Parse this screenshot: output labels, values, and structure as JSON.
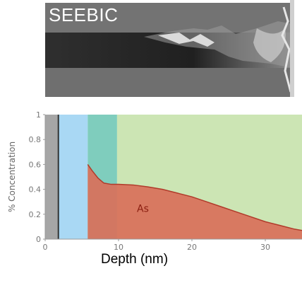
{
  "sem": {
    "label": "SEEBIC"
  },
  "chart_data": {
    "type": "area",
    "xlabel": "Depth (nm)",
    "ylabel": "% Concentration",
    "xlim": [
      0,
      35
    ],
    "ylim": [
      0,
      1
    ],
    "x_ticks": [
      0,
      10,
      20,
      30
    ],
    "y_ticks": [
      0,
      0.2,
      0.4,
      0.6,
      0.8,
      1
    ],
    "y_tick_labels": [
      "0",
      "0.2",
      "0.4",
      "0.6",
      "0.8",
      "1"
    ],
    "grid": false,
    "regions": [
      {
        "x_start": 0,
        "x_end": 1.8,
        "color": "#a6a6a6"
      },
      {
        "x_start": 1.8,
        "x_end": 5.8,
        "color": "#a9d8f4"
      },
      {
        "x_start": 5.8,
        "x_end": 9.8,
        "color": "#7fcdbd"
      },
      {
        "x_start": 9.8,
        "x_end": 35,
        "color": "#cce5b4"
      }
    ],
    "boundary_lines": [
      {
        "x": 1.8,
        "color": "#333333"
      }
    ],
    "series": [
      {
        "name": "As",
        "color": "#d9705a",
        "line_color": "#b03a2a",
        "x": [
          5.8,
          6.4,
          7.2,
          8.0,
          9.0,
          10.0,
          12.0,
          14.0,
          16.0,
          18.0,
          20.0,
          22.0,
          24.0,
          26.0,
          28.0,
          30.0,
          32.0,
          34.0,
          35.0
        ],
        "y": [
          0.6,
          0.55,
          0.49,
          0.45,
          0.44,
          0.44,
          0.435,
          0.42,
          0.4,
          0.37,
          0.34,
          0.3,
          0.26,
          0.22,
          0.18,
          0.14,
          0.11,
          0.08,
          0.07
        ]
      }
    ]
  }
}
